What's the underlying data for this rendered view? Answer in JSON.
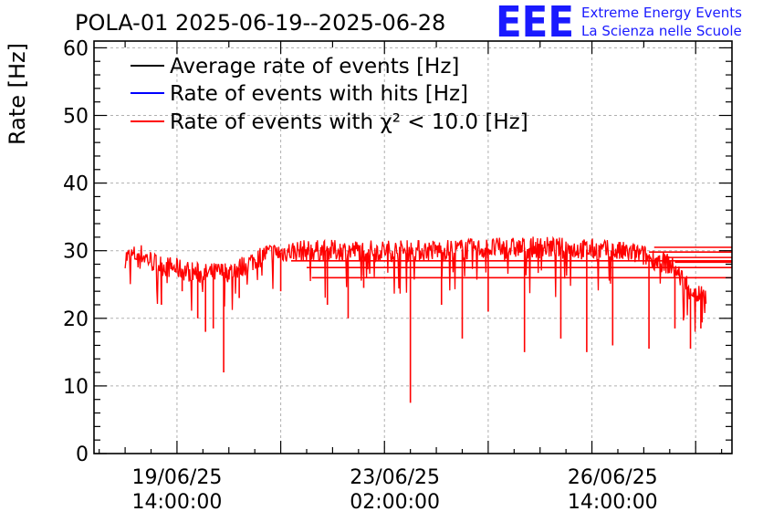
{
  "chart_data": {
    "type": "line",
    "title": "POLA-01 2025-06-19--2025-06-28",
    "ylabel": "Rate [Hz]",
    "xlabel": "",
    "ylim": [
      0,
      61
    ],
    "x_range": [
      "2025-06-18 06:00",
      "2025-06-28 12:00"
    ],
    "y_ticks": [
      0,
      10,
      20,
      30,
      40,
      50,
      60
    ],
    "x_ticks": [
      {
        "at": "2025-06-19 14:00",
        "line1": "19/06/25",
        "line2": "14:00:00"
      },
      {
        "at": "2025-06-23 02:00",
        "line1": "23/06/25",
        "line2": "02:00:00"
      },
      {
        "at": "2025-06-26 14:00",
        "line1": "26/06/25",
        "line2": "14:00:00"
      }
    ],
    "grid": true,
    "legend_position": "top-left",
    "series": [
      {
        "name": "Average rate of events [Hz]",
        "color": "#000000"
      },
      {
        "name": "Rate of events with hits [Hz]",
        "color": "#0000ff"
      },
      {
        "name": "Rate of events with χ² < 10.0 [Hz]",
        "color": "#ff0000",
        "envelope_points": [
          {
            "t": "2025-06-18 18:00",
            "y": 29.0
          },
          {
            "t": "2025-06-19 00:00",
            "y": 29.5
          },
          {
            "t": "2025-06-19 06:00",
            "y": 28.0
          },
          {
            "t": "2025-06-19 12:00",
            "y": 27.5
          },
          {
            "t": "2025-06-20 00:00",
            "y": 26.5
          },
          {
            "t": "2025-06-20 12:00",
            "y": 27.0
          },
          {
            "t": "2025-06-21 00:00",
            "y": 29.5
          },
          {
            "t": "2025-06-21 12:00",
            "y": 30.0
          },
          {
            "t": "2025-06-22 12:00",
            "y": 30.0
          },
          {
            "t": "2025-06-23 12:00",
            "y": 30.0
          },
          {
            "t": "2025-06-24 12:00",
            "y": 30.3
          },
          {
            "t": "2025-06-25 12:00",
            "y": 30.5
          },
          {
            "t": "2025-06-26 12:00",
            "y": 30.0
          },
          {
            "t": "2025-06-27 00:00",
            "y": 29.5
          },
          {
            "t": "2025-06-27 12:00",
            "y": 28.0
          },
          {
            "t": "2025-06-27 22:00",
            "y": 23.5
          },
          {
            "t": "2025-06-28 02:00",
            "y": 23.5
          }
        ],
        "dips": [
          {
            "t": "2025-06-19 08:00",
            "y": 22.0
          },
          {
            "t": "2025-06-19 16:00",
            "y": 24.0
          },
          {
            "t": "2025-06-19 22:00",
            "y": 20.0
          },
          {
            "t": "2025-06-20 01:00",
            "y": 18.0
          },
          {
            "t": "2025-06-20 04:00",
            "y": 18.5
          },
          {
            "t": "2025-06-20 08:00",
            "y": 12.0
          },
          {
            "t": "2025-06-20 14:00",
            "y": 23.0
          },
          {
            "t": "2025-06-21 06:00",
            "y": 24.0
          },
          {
            "t": "2025-06-22 00:00",
            "y": 22.0
          },
          {
            "t": "2025-06-22 08:00",
            "y": 20.0
          },
          {
            "t": "2025-06-22 14:00",
            "y": 24.5
          },
          {
            "t": "2025-06-23 08:00",
            "y": 7.5
          },
          {
            "t": "2025-06-23 20:00",
            "y": 22.0
          },
          {
            "t": "2025-06-24 04:00",
            "y": 17.0
          },
          {
            "t": "2025-06-24 14:00",
            "y": 21.0
          },
          {
            "t": "2025-06-25 04:00",
            "y": 15.0
          },
          {
            "t": "2025-06-25 18:00",
            "y": 17.0
          },
          {
            "t": "2025-06-26 04:00",
            "y": 15.0
          },
          {
            "t": "2025-06-26 14:00",
            "y": 16.0
          },
          {
            "t": "2025-06-27 04:00",
            "y": 15.5
          },
          {
            "t": "2025-06-27 14:00",
            "y": 18.5
          },
          {
            "t": "2025-06-27 20:00",
            "y": 15.5
          },
          {
            "t": "2025-06-28 00:00",
            "y": 18.5
          }
        ],
        "flat_lines": [
          {
            "t_start": "2025-06-27 06:00",
            "y": 30.5
          },
          {
            "t_start": "2025-06-27 04:00",
            "y": 29.8
          },
          {
            "t_start": "2025-06-27 10:00",
            "y": 29.0
          },
          {
            "t_start": "2025-06-27 14:00",
            "y": 28.3
          },
          {
            "t_start": "2025-06-21 10:00",
            "y": 28.5
          },
          {
            "t_start": "2025-06-21 16:00",
            "y": 27.5
          },
          {
            "t_start": "2025-06-21 18:00",
            "y": 26.0
          }
        ]
      }
    ]
  },
  "logo": {
    "mark": "EEE",
    "line1": "Extreme Energy Events",
    "line2": "La Scienza nelle Scuole"
  }
}
